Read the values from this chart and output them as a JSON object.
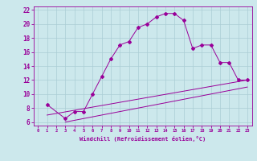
{
  "xlabel": "Windchill (Refroidissement éolien,°C)",
  "bg_color": "#cce8ec",
  "grid_color": "#aacdd4",
  "line_color": "#990099",
  "xlim": [
    -0.5,
    23.5
  ],
  "ylim": [
    5.5,
    22.5
  ],
  "xticks": [
    0,
    1,
    2,
    3,
    4,
    5,
    6,
    7,
    8,
    9,
    10,
    11,
    12,
    13,
    14,
    15,
    16,
    17,
    18,
    19,
    20,
    21,
    22,
    23
  ],
  "yticks": [
    6,
    8,
    10,
    12,
    14,
    16,
    18,
    20,
    22
  ],
  "curve_x": [
    1,
    3,
    4,
    5,
    6,
    7,
    8,
    9,
    10,
    11,
    12,
    13,
    14,
    15,
    16,
    17,
    18,
    19,
    20,
    21,
    22,
    23
  ],
  "curve_y": [
    8.5,
    6.5,
    7.5,
    7.5,
    10.0,
    12.5,
    15.0,
    17.0,
    17.5,
    19.5,
    20.0,
    21.0,
    21.5,
    21.5,
    20.5,
    16.5,
    17.0,
    17.0,
    14.5,
    14.5,
    12.0,
    12.0
  ],
  "line1_x": [
    1,
    23
  ],
  "line1_y": [
    7.0,
    12.0
  ],
  "line2_x": [
    3,
    23
  ],
  "line2_y": [
    6.0,
    11.0
  ]
}
